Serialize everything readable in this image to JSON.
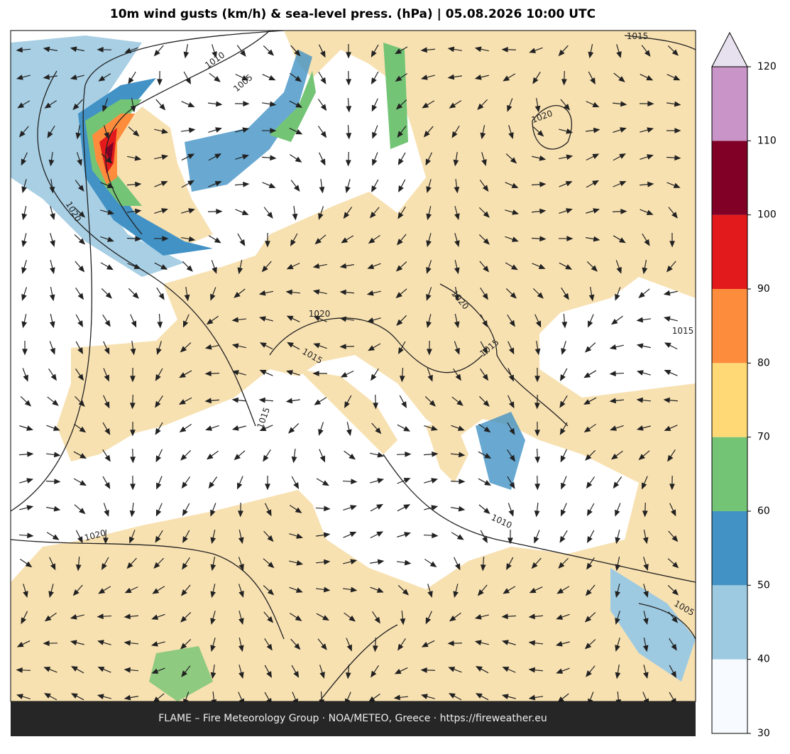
{
  "header": {
    "title": "10m wind gusts (km/h) & sea-level press. (hPa)  |  05.08.2026 10:00 UTC"
  },
  "footer": {
    "text": "FLAME – Fire Meteorology Group · NOA/METEO, Greece · https://fireweather.eu"
  },
  "colorbar": {
    "ticks": [
      30,
      40,
      50,
      60,
      70,
      80,
      90,
      100,
      110,
      120
    ],
    "colors": [
      "#f7fbff",
      "#9ecae1",
      "#4292c6",
      "#74c476",
      "#fed976",
      "#fd8d3c",
      "#e31a1c",
      "#800026",
      "#c994c7"
    ],
    "extend_color": "#e7e1ef"
  },
  "isobar_labels": [
    "1015",
    "1010",
    "1005",
    "1020",
    "1020",
    "1020",
    "1020",
    "1015",
    "1015",
    "1015",
    "1015",
    "1010",
    "1020",
    "1005"
  ]
}
